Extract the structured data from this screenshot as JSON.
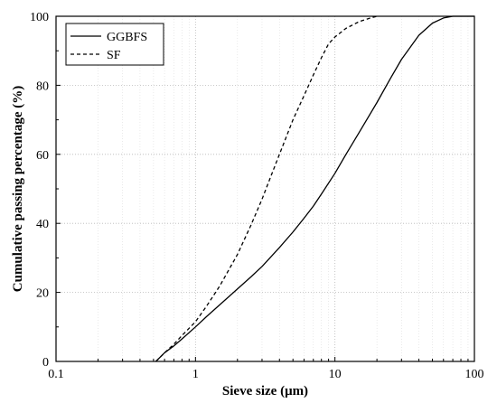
{
  "chart_data": {
    "type": "line",
    "xlabel": "Sieve size (μm)",
    "ylabel": "Cumulative passing percentage (%)",
    "x_scale": "log",
    "xlim": [
      0.1,
      100
    ],
    "ylim": [
      0,
      100
    ],
    "x_ticks": [
      "0.1",
      "1",
      "10",
      "100"
    ],
    "y_ticks": [
      "0",
      "20",
      "40",
      "60",
      "80",
      "100"
    ],
    "grid": true,
    "legend_position": "top-left",
    "series": [
      {
        "name": "GGBFS",
        "style": "solid",
        "x": [
          0.52,
          0.6,
          0.7,
          0.8,
          1.0,
          1.2,
          1.5,
          2.0,
          2.5,
          3.0,
          4.0,
          5.0,
          6.0,
          7.0,
          8.0,
          10.0,
          12.0,
          15.0,
          20.0,
          25.0,
          30.0,
          40.0,
          50.0,
          60.0,
          70.0,
          80.0,
          90.0,
          100.0
        ],
        "y": [
          0,
          2.5,
          4.5,
          6.5,
          10,
          13,
          16.5,
          21,
          24.5,
          27.5,
          33,
          37.5,
          41.5,
          45,
          48.5,
          54.5,
          60,
          66.5,
          75,
          82,
          87.5,
          94.5,
          98,
          99.5,
          100,
          100,
          100,
          100
        ]
      },
      {
        "name": "SF",
        "style": "dashed",
        "x": [
          0.52,
          0.6,
          0.7,
          0.8,
          1.0,
          1.2,
          1.5,
          2.0,
          2.5,
          3.0,
          3.5,
          4.0,
          5.0,
          6.0,
          7.0,
          8.0,
          9.0,
          10.0,
          12.0,
          15.0,
          18.0,
          20.0
        ],
        "y": [
          0,
          2.5,
          5,
          7.5,
          11.5,
          16,
          22,
          31,
          39.5,
          47,
          54,
          60,
          70,
          77,
          83,
          88,
          92,
          94,
          96.5,
          98.5,
          99.5,
          100
        ]
      }
    ]
  }
}
